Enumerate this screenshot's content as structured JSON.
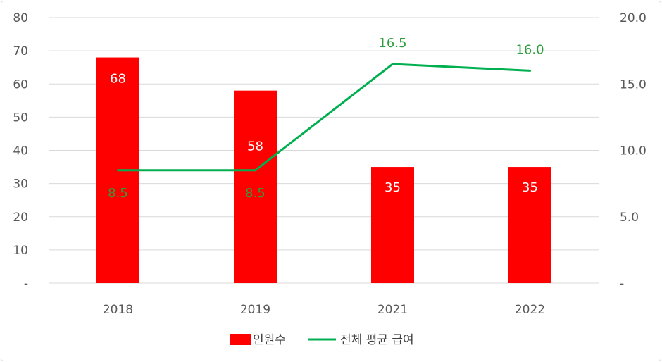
{
  "chart_data": {
    "type": "bar",
    "categories": [
      "2018",
      "2019",
      "2021",
      "2022"
    ],
    "series": [
      {
        "name": "인원수",
        "kind": "bar",
        "axis": "left",
        "color": "#ff0000",
        "values": [
          68,
          58,
          35,
          35
        ]
      },
      {
        "name": "전체 평균 급여",
        "kind": "line",
        "axis": "right",
        "color": "#00b050",
        "values": [
          8.5,
          8.5,
          16.5,
          16.0
        ]
      }
    ],
    "bar_labels": [
      "68",
      "58",
      "35",
      "35"
    ],
    "line_labels": [
      "8.5",
      "8.5",
      "16.5",
      "16.0"
    ],
    "y_left": {
      "ylim": [
        0,
        80
      ],
      "ticks": [
        "-",
        "10",
        "20",
        "30",
        "40",
        "50",
        "60",
        "70",
        "80"
      ]
    },
    "y_right": {
      "ylim": [
        0,
        20
      ],
      "ticks": [
        "-",
        "5.0",
        "10.0",
        "15.0",
        "20.0"
      ]
    },
    "grid": true,
    "legend": {
      "placement": "bottom",
      "items": [
        "인원수",
        "전체 평균 급여"
      ]
    }
  }
}
